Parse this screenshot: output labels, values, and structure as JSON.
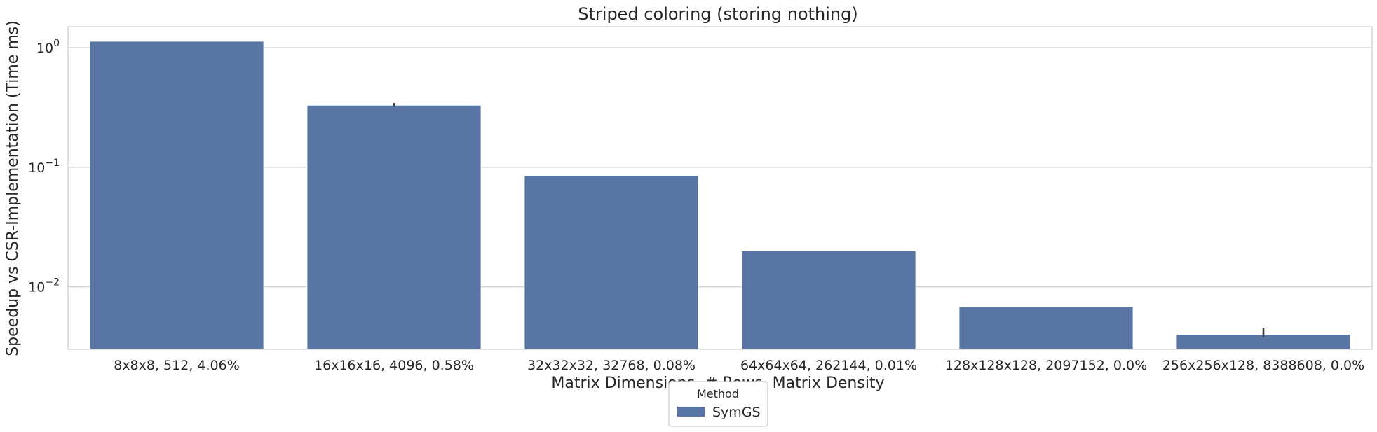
{
  "chart_data": {
    "type": "bar",
    "title": "Striped coloring (storing nothing)",
    "xlabel": "Matrix Dimensions, # Rows, Matrix Density",
    "ylabel": "Speedup vs CSR-Implementation (Time ms)",
    "yscale": "log",
    "ylim": [
      0.003,
      1.5
    ],
    "yticks": [
      0.01,
      0.1,
      1
    ],
    "ytick_labels": [
      {
        "base": "10",
        "exp": "−2"
      },
      {
        "base": "10",
        "exp": "−1"
      },
      {
        "base": "10",
        "exp": "0"
      }
    ],
    "grid": "horizontal",
    "categories": [
      "8x8x8, 512, 4.06%",
      "16x16x16, 4096, 0.58%",
      "32x32x32, 32768, 0.08%",
      "64x64x64, 262144, 0.01%",
      "128x128x128, 2097152, 0.0%",
      "256x256x128, 8388608, 0.0%"
    ],
    "series": [
      {
        "name": "SymGS",
        "color": "#5875a4",
        "values": [
          1.13,
          0.33,
          0.085,
          0.02,
          0.0068,
          0.004
        ],
        "error": [
          null,
          [
            0.32,
            0.345
          ],
          null,
          null,
          null,
          [
            0.0038,
            0.0045
          ]
        ]
      }
    ],
    "legend": {
      "title": "Method",
      "placement": "bottom-center"
    }
  }
}
